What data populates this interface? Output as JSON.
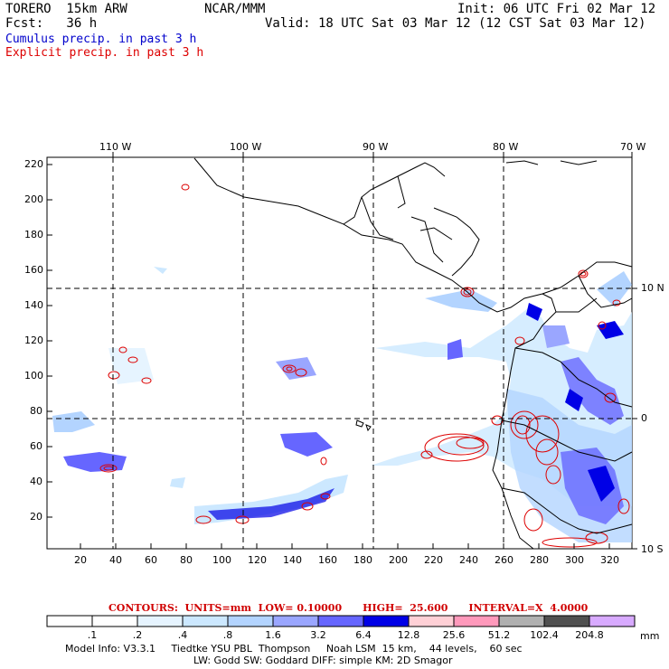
{
  "header": {
    "model": "TORERO  15km ARW",
    "org": "NCAR/MMM",
    "init": "Init: 06 UTC Fri 02 Mar 12",
    "fcst": "Fcst:   36 h",
    "valid": "Valid: 18 UTC Sat 03 Mar 12 (12 CST Sat 03 Mar 12)"
  },
  "legend": {
    "cumulus": "Cumulus precip. in past 3 h",
    "explicit": "Explicit precip. in past 3 h",
    "cumulus_color": "#0000cc",
    "explicit_color": "#dd0000"
  },
  "map": {
    "top_lon_labels": [
      "110 W",
      "100 W",
      "90 W",
      "80 W",
      "70 W"
    ],
    "right_lat_labels": [
      "10 N",
      "0",
      "10 S"
    ],
    "left_y_labels": [
      "220",
      "200",
      "180",
      "160",
      "140",
      "120",
      "100",
      "80",
      "60",
      "40",
      "20"
    ],
    "bottom_x_labels": [
      "20",
      "40",
      "60",
      "80",
      "100",
      "120",
      "140",
      "160",
      "180",
      "200",
      "220",
      "240",
      "260",
      "280",
      "300",
      "320"
    ]
  },
  "contour_info": {
    "text": "CONTOURS:  UNITS=mm  LOW= 0.10000      HIGH=  25.600      INTERVAL=X  4.0000"
  },
  "colorbar": {
    "labels": [
      ".1",
      ".2",
      ".4",
      ".8",
      "1.6",
      "3.2",
      "6.4",
      "12.8",
      "25.6",
      "51.2",
      "102.4",
      "204.8"
    ],
    "unit": "mm",
    "colors": [
      "#ffffff",
      "#ffffff",
      "#e6f4ff",
      "#cce8ff",
      "#b3d4ff",
      "#9aa6ff",
      "#6666ff",
      "#0000e6",
      "#ffd0d6",
      "#ff99bb",
      "#b0b0b0",
      "#505050",
      "#d8aaff"
    ]
  },
  "model_info": {
    "line1": "Model Info: V3.3.1     Tiedtke YSU PBL  Thompson     Noah LSM  15 km,    44 levels,    60 sec",
    "line2": "LW: Godd SW: Goddard DIFF: simple KM: 2D Smagor"
  }
}
